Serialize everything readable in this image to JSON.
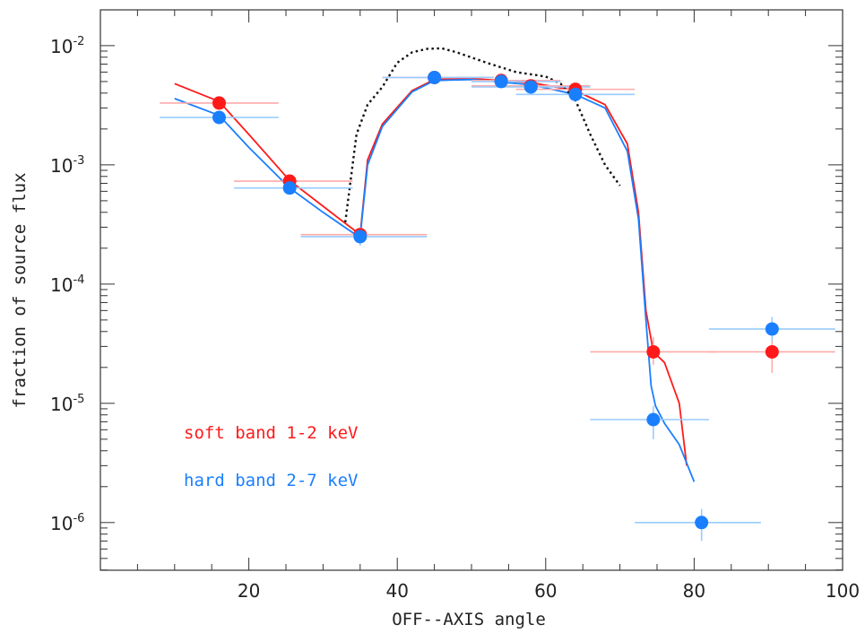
{
  "chart_data": {
    "type": "scatter",
    "title": "",
    "xlabel": "OFF--AXIS angle",
    "ylabel": "fraction of source flux",
    "xlim": [
      0,
      100
    ],
    "ylim_log10": [
      -6.4,
      -1.7
    ],
    "y_scale": "log",
    "grid": false,
    "x_ticks": [
      20,
      40,
      60,
      80,
      100
    ],
    "x_tick_labels": [
      "20",
      "40",
      "60",
      "80",
      "100"
    ],
    "y_ticks_log10": [
      -6,
      -5,
      -4,
      -3,
      -2
    ],
    "y_tick_labels": [
      {
        "base": "10",
        "exp": "-6"
      },
      {
        "base": "10",
        "exp": "-5"
      },
      {
        "base": "10",
        "exp": "-4"
      },
      {
        "base": "10",
        "exp": "-3"
      },
      {
        "base": "10",
        "exp": "-2"
      }
    ],
    "legend_placement": "bottom-left",
    "series": [
      {
        "name": "soft band 1-2 keV",
        "color": "#ff1a1a",
        "points": [
          {
            "x": 16,
            "xerr": [
              8,
              24
            ],
            "y": 0.0033
          },
          {
            "x": 25.5,
            "xerr": [
              18,
              34
            ],
            "y": 0.00073
          },
          {
            "x": 35,
            "xerr": [
              27,
              44
            ],
            "y": 0.00026
          },
          {
            "x": 45,
            "xerr": [
              38,
              53
            ],
            "y": 0.0054
          },
          {
            "x": 54,
            "xerr": [
              50,
              62
            ],
            "y": 0.0051
          },
          {
            "x": 58,
            "xerr": [
              50,
              66
            ],
            "y": 0.0046
          },
          {
            "x": 64,
            "xerr": [
              56,
              72
            ],
            "y": 0.0043
          },
          {
            "x": 74.5,
            "xerr": [
              66,
              83
            ],
            "y": 2.7e-05,
            "yerr": [
              2.1e-05,
              3.6e-05
            ]
          },
          {
            "x": 90.5,
            "xerr": [
              82,
              99
            ],
            "y": 2.7e-05,
            "yerr": [
              1.8e-05,
              3.6e-05
            ]
          }
        ],
        "curve": [
          [
            10,
            0.0048
          ],
          [
            16,
            0.0034
          ],
          [
            20,
            0.0018
          ],
          [
            25.5,
            0.00074
          ],
          [
            30,
            0.00045
          ],
          [
            34,
            0.00029
          ],
          [
            35,
            0.00026
          ],
          [
            36,
            0.0011
          ],
          [
            38,
            0.0022
          ],
          [
            42,
            0.0042
          ],
          [
            45,
            0.0052
          ],
          [
            50,
            0.0053
          ],
          [
            58,
            0.0049
          ],
          [
            64,
            0.0042
          ],
          [
            68,
            0.0032
          ],
          [
            71,
            0.0015
          ],
          [
            72.5,
            0.0004
          ],
          [
            73.5,
            6e-05
          ],
          [
            74.5,
            2.7e-05
          ],
          [
            76,
            2.2e-05
          ],
          [
            78,
            1e-05
          ],
          [
            79,
            3e-06
          ]
        ]
      },
      {
        "name": "hard band 2-7 keV",
        "color": "#1a7fff",
        "points": [
          {
            "x": 16,
            "xerr": [
              8,
              24
            ],
            "y": 0.0025
          },
          {
            "x": 25.5,
            "xerr": [
              18,
              34
            ],
            "y": 0.00064
          },
          {
            "x": 35,
            "xerr": [
              27,
              44
            ],
            "y": 0.00025,
            "yerr": [
              0.00021,
              0.0003
            ]
          },
          {
            "x": 45,
            "xerr": [
              38,
              53
            ],
            "y": 0.0054
          },
          {
            "x": 54,
            "xerr": [
              50,
              62
            ],
            "y": 0.005
          },
          {
            "x": 58,
            "xerr": [
              50,
              66
            ],
            "y": 0.0045
          },
          {
            "x": 64,
            "xerr": [
              56,
              72
            ],
            "y": 0.0039
          },
          {
            "x": 74.5,
            "xerr": [
              66,
              82
            ],
            "y": 7.3e-06,
            "yerr": [
              5e-06,
              9.5e-06
            ]
          },
          {
            "x": 81,
            "xerr": [
              72,
              89
            ],
            "y": 1e-06,
            "yerr": [
              7e-07,
              1.3e-06
            ]
          },
          {
            "x": 90.5,
            "xerr": [
              82,
              99
            ],
            "y": 4.2e-05,
            "yerr": [
              3.3e-05,
              5.3e-05
            ]
          }
        ],
        "curve": [
          [
            10,
            0.0036
          ],
          [
            16,
            0.0026
          ],
          [
            20,
            0.0014
          ],
          [
            25.5,
            0.00064
          ],
          [
            30,
            0.0004
          ],
          [
            34,
            0.00027
          ],
          [
            35,
            0.00025
          ],
          [
            36,
            0.001
          ],
          [
            38,
            0.0021
          ],
          [
            42,
            0.0041
          ],
          [
            45,
            0.0051
          ],
          [
            50,
            0.0052
          ],
          [
            58,
            0.0047
          ],
          [
            64,
            0.0039
          ],
          [
            68,
            0.003
          ],
          [
            71,
            0.0013
          ],
          [
            72.5,
            0.00035
          ],
          [
            73.5,
            5e-05
          ],
          [
            74.2,
            1.4e-05
          ],
          [
            74.8,
            9.5e-06
          ],
          [
            76,
            6.8e-06
          ],
          [
            78,
            4.5e-06
          ],
          [
            80,
            2.2e-06
          ]
        ]
      },
      {
        "name": "",
        "color": "#111111",
        "style": "dotted",
        "curve": [
          [
            33,
            0.00033
          ],
          [
            34.5,
            0.0018
          ],
          [
            36,
            0.0032
          ],
          [
            38,
            0.0045
          ],
          [
            40,
            0.0072
          ],
          [
            42,
            0.0088
          ],
          [
            44,
            0.0094
          ],
          [
            46,
            0.0095
          ],
          [
            48,
            0.0088
          ],
          [
            52,
            0.0072
          ],
          [
            56,
            0.006
          ],
          [
            60,
            0.0055
          ],
          [
            62,
            0.0048
          ],
          [
            64,
            0.0035
          ],
          [
            66,
            0.0018
          ],
          [
            68,
            0.001
          ],
          [
            70,
            0.00067
          ]
        ]
      }
    ]
  },
  "legend": [
    {
      "label": "soft band 1-2 keV",
      "color": "#ff1a1a"
    },
    {
      "label": "hard band 2-7 keV",
      "color": "#1a7fff"
    }
  ]
}
